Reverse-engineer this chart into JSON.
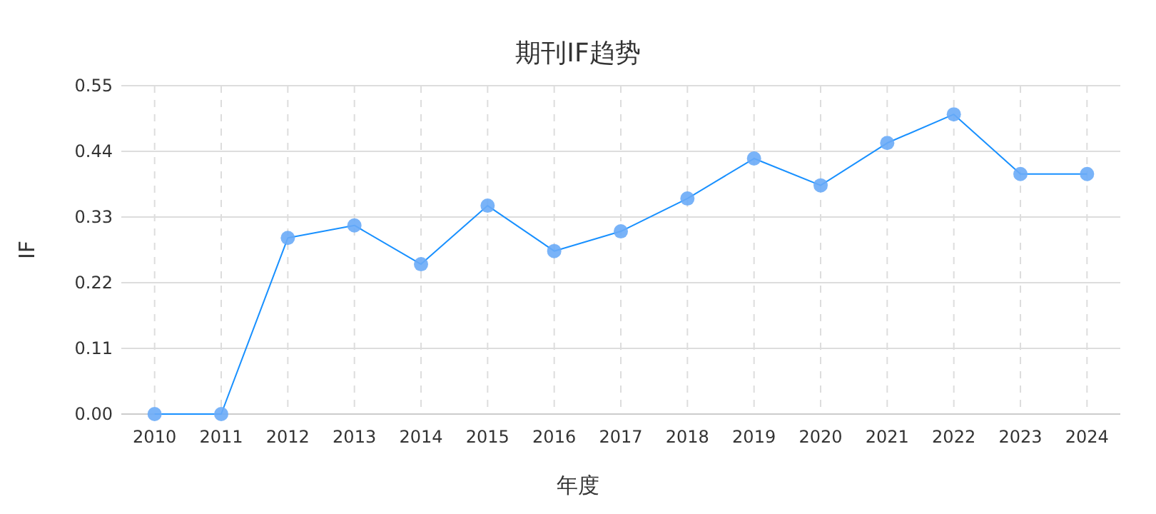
{
  "chart_data": {
    "type": "line",
    "title": "期刊IF趋势",
    "xlabel": "年度",
    "ylabel": "IF",
    "categories": [
      "2010",
      "2011",
      "2012",
      "2013",
      "2014",
      "2015",
      "2016",
      "2017",
      "2018",
      "2019",
      "2020",
      "2021",
      "2022",
      "2023",
      "2024"
    ],
    "series": [
      {
        "color": "#1890ff",
        "values": [
          0,
          0,
          0.295,
          0.316,
          0.251,
          0.349,
          0.273,
          0.306,
          0.361,
          0.428,
          0.383,
          0.454,
          0.502,
          0.402,
          0.402
        ]
      }
    ],
    "ylim": [
      0,
      0.55
    ],
    "yticks": [
      {
        "value": 0,
        "label": "0.00"
      },
      {
        "value": 0.11,
        "label": "0.11"
      },
      {
        "value": 0.22,
        "label": "0.22"
      },
      {
        "value": 0.33,
        "label": "0.33"
      },
      {
        "value": 0.44,
        "label": "0.44"
      },
      {
        "value": 0.55,
        "label": "0.55"
      }
    ],
    "grid": true,
    "marker": "circle",
    "line_style": "solid"
  }
}
